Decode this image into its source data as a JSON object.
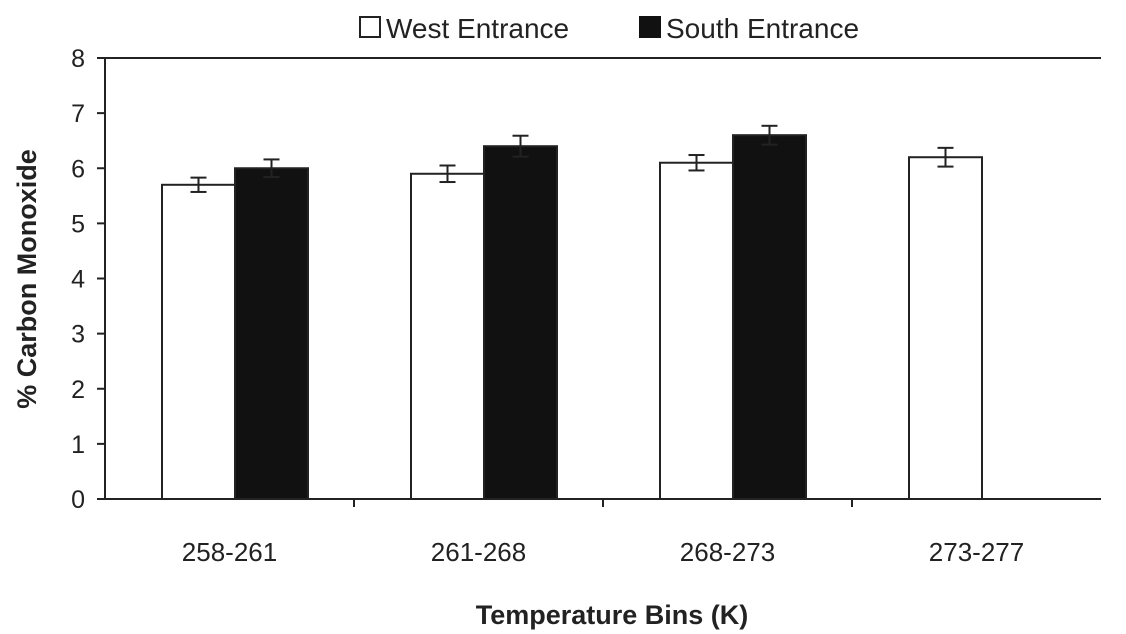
{
  "chart_data": {
    "type": "bar",
    "xlabel": "Temperature Bins (K)",
    "ylabel": "% Carbon Monoxide",
    "categories": [
      "258-261",
      "261-268",
      "268-273",
      "273-277"
    ],
    "series": [
      {
        "name": "West Entrance",
        "fill": "#ffffff",
        "values": [
          5.7,
          5.9,
          6.1,
          6.2
        ],
        "errors": [
          0.13,
          0.15,
          0.14,
          0.17
        ]
      },
      {
        "name": "South Entrance",
        "fill": "#111111",
        "values": [
          6.0,
          6.4,
          6.6,
          null
        ],
        "errors": [
          0.16,
          0.19,
          0.17,
          null
        ]
      }
    ],
    "ylim": [
      0,
      8
    ],
    "yticks": [
      "0",
      "1",
      "2",
      "3",
      "4",
      "5",
      "6",
      "7",
      "8"
    ],
    "grid": false,
    "legend_position": "top-center",
    "error_bars": true
  }
}
